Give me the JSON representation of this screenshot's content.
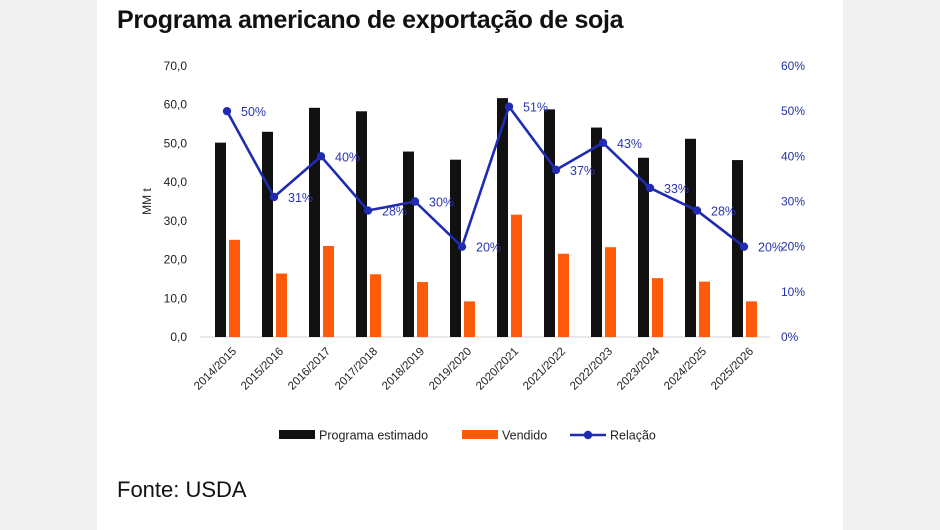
{
  "title": "Programa americano de exportação de soja",
  "source": "Fonte: USDA",
  "colors": {
    "programa": "#111111",
    "vendido": "#ff5a0a",
    "relacao": "#1f2bb0"
  },
  "chart_data": {
    "type": "bar",
    "categories": [
      "2014/2015",
      "2015/2016",
      "2016/2017",
      "2017/2018",
      "2018/2019",
      "2019/2020",
      "2020/2021",
      "2021/2022",
      "2022/2023",
      "2023/2024",
      "2024/2025",
      "2025/2026"
    ],
    "ylabel": "MM t",
    "ylim": [
      0,
      70
    ],
    "yticks": [
      "0,0",
      "10,0",
      "20,0",
      "30,0",
      "40,0",
      "50,0",
      "60,0",
      "70,0"
    ],
    "y2lim": [
      0,
      60
    ],
    "y2ticks": [
      "0%",
      "10%",
      "20%",
      "30%",
      "40%",
      "50%",
      "60%"
    ],
    "grid": false,
    "legend_position": "bottom",
    "series": [
      {
        "name": "Programa estimado",
        "type": "bar",
        "axis": "left",
        "values": [
          50.2,
          53.0,
          59.2,
          58.3,
          47.9,
          45.8,
          61.7,
          58.8,
          54.1,
          46.3,
          51.2,
          45.7
        ]
      },
      {
        "name": "Vendido",
        "type": "bar",
        "axis": "left",
        "values": [
          25.1,
          16.4,
          23.5,
          16.2,
          14.2,
          9.2,
          31.6,
          21.5,
          23.2,
          15.2,
          14.3,
          9.2
        ]
      },
      {
        "name": "Relação",
        "type": "line",
        "axis": "right",
        "values": [
          50,
          31,
          40,
          28,
          30,
          20,
          51,
          37,
          43,
          33,
          28,
          20
        ],
        "labels": [
          "50%",
          "31%",
          "40%",
          "28%",
          "30%",
          "20%",
          "51%",
          "37%",
          "43%",
          "33%",
          "28%",
          "20%"
        ]
      }
    ]
  }
}
